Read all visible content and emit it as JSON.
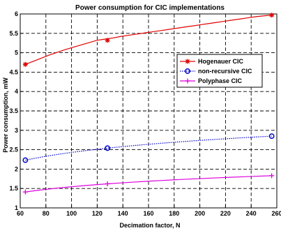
{
  "chart_data": {
    "type": "line",
    "title": "Power consumption for CIC implementations",
    "xlabel": "Decimation factor, N",
    "ylabel": "Power consumption, mW",
    "xlim": [
      60,
      260
    ],
    "ylim": [
      1,
      6
    ],
    "xticks": [
      60,
      80,
      100,
      120,
      140,
      160,
      180,
      200,
      220,
      240,
      260
    ],
    "yticks": [
      1,
      1.5,
      2,
      2.5,
      3,
      3.5,
      4,
      4.5,
      5,
      5.5,
      6
    ],
    "xtick_labels": [
      "60",
      "80",
      "100",
      "120",
      "140",
      "160",
      "180",
      "200",
      "220",
      "240",
      "260"
    ],
    "ytick_labels": [
      "1",
      "1.5",
      "2",
      "2.5",
      "3",
      "3.5",
      "4",
      "4.5",
      "5",
      "5.5",
      "6"
    ],
    "grid": true,
    "legend_position": "upper-right",
    "series": [
      {
        "name": "Hogenauer CIC",
        "color": "#e00000",
        "marker": "star",
        "line_style": "solid",
        "x": [
          64,
          128,
          256
        ],
        "y": [
          4.7,
          5.32,
          5.97
        ],
        "curve_y": [
          4.7,
          4.78,
          4.86,
          4.94,
          5.01,
          5.08,
          5.14,
          5.2,
          5.26,
          5.32,
          5.35,
          5.38,
          5.42,
          5.45,
          5.48,
          5.51,
          5.54,
          5.57,
          5.6,
          5.63,
          5.66,
          5.69,
          5.72,
          5.75,
          5.78,
          5.81,
          5.84,
          5.87,
          5.9,
          5.93,
          5.95,
          5.97
        ]
      },
      {
        "name": "non-recursive CIC",
        "color": "#0000cc",
        "marker": "circle",
        "line_style": "dotted",
        "x": [
          64,
          128,
          256
        ],
        "y": [
          2.23,
          2.54,
          2.85
        ]
      },
      {
        "name": "Polyphase CIC",
        "color": "#dd00dd",
        "marker": "plus",
        "line_style": "solid",
        "x": [
          64,
          128,
          256
        ],
        "y": [
          1.41,
          1.62,
          1.83
        ]
      }
    ]
  }
}
